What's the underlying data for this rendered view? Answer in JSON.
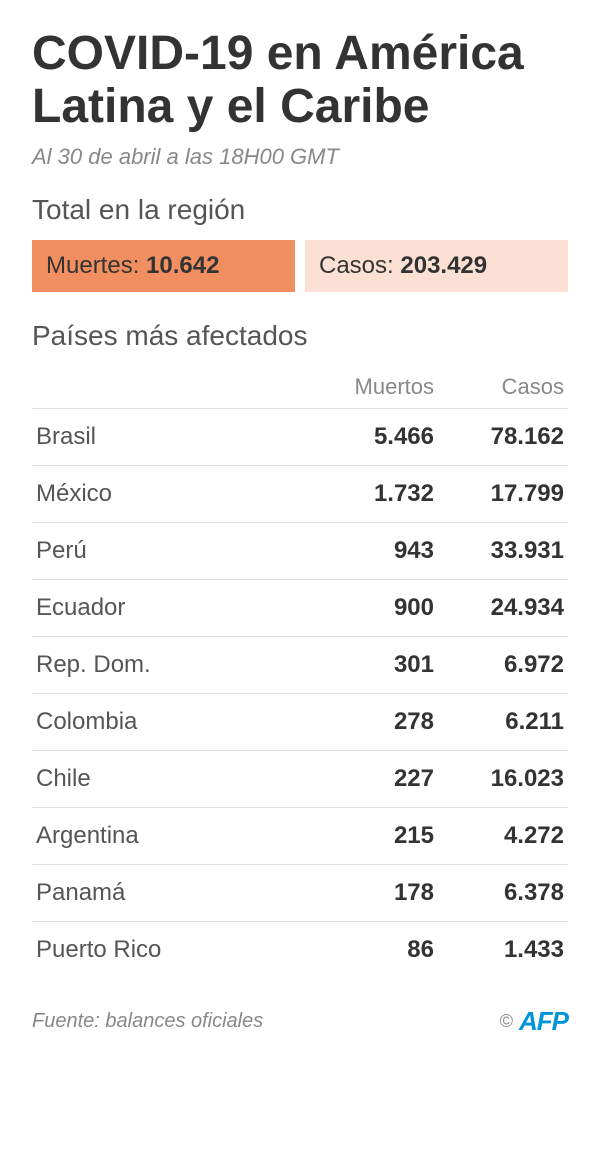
{
  "title": "COVID-19 en América Latina y el Caribe",
  "subtitle": "Al 30 de abril a las 18H00 GMT",
  "region_total_label": "Total en la región",
  "totals": {
    "deaths": {
      "label": "Muertes:",
      "value": "10.642",
      "bg": "#f28f61"
    },
    "cases": {
      "label": "Casos:",
      "value": "203.429",
      "bg": "#fbe0d3"
    }
  },
  "affected_label": "Países más afectados",
  "table": {
    "columns": {
      "country": "",
      "deaths": "Muertos",
      "cases": "Casos"
    },
    "rows": [
      {
        "country": "Brasil",
        "deaths": "5.466",
        "cases": "78.162"
      },
      {
        "country": "México",
        "deaths": "1.732",
        "cases": "17.799"
      },
      {
        "country": "Perú",
        "deaths": "943",
        "cases": "33.931"
      },
      {
        "country": "Ecuador",
        "deaths": "900",
        "cases": "24.934"
      },
      {
        "country": "Rep. Dom.",
        "deaths": "301",
        "cases": "6.972"
      },
      {
        "country": "Colombia",
        "deaths": "278",
        "cases": "6.211"
      },
      {
        "country": "Chile",
        "deaths": "227",
        "cases": "16.023"
      },
      {
        "country": "Argentina",
        "deaths": "215",
        "cases": "4.272"
      },
      {
        "country": "Panamá",
        "deaths": "178",
        "cases": "6.378"
      },
      {
        "country": "Puerto Rico",
        "deaths": "86",
        "cases": "1.433"
      }
    ],
    "row_border_color": "#e0e0e0",
    "header_color": "#888888",
    "country_color": "#555555",
    "number_color": "#333333",
    "number_weight": 700,
    "font_size": 24
  },
  "footer": {
    "source": "Fuente: balances oficiales",
    "copyright": "©",
    "brand": "AFP",
    "brand_color": "#0095d8"
  },
  "style": {
    "background": "#ffffff",
    "title_fontsize": 48,
    "subtitle_fontsize": 22,
    "section_fontsize": 28
  }
}
